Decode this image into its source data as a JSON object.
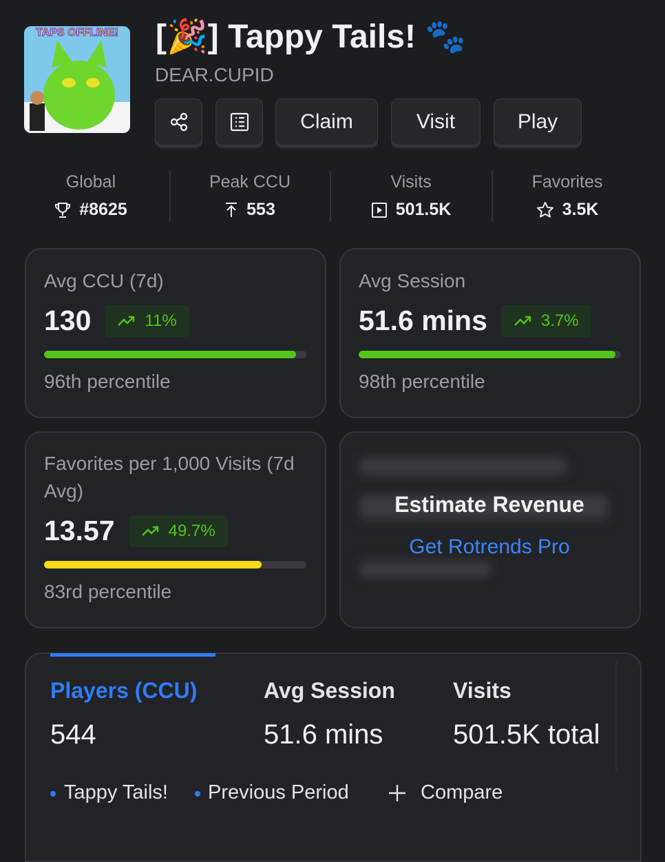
{
  "header": {
    "title": "[🎉] Tappy Tails! 🐾",
    "creator": "DEAR.CUPID",
    "thumbnail_text": "TAPS OFFLINE!"
  },
  "buttons": {
    "claim": "Claim",
    "visit": "Visit",
    "play": "Play"
  },
  "stats": [
    {
      "label": "Global",
      "value": "#8625"
    },
    {
      "label": "Peak CCU",
      "value": "553"
    },
    {
      "label": "Visits",
      "value": "501.5K"
    },
    {
      "label": "Favorites",
      "value": "3.5K"
    }
  ],
  "cards": [
    {
      "label": "Avg CCU (7d)",
      "value": "130",
      "change": "11%",
      "percentile": 96,
      "percentile_label": "96th percentile"
    },
    {
      "label": "Avg Session",
      "value": "51.6 mins",
      "change": "3.7%",
      "percentile": 98,
      "percentile_label": "98th percentile"
    },
    {
      "label": "Favorites per 1,000 Visits (7d Avg)",
      "value": "13.57",
      "change": "49.7%",
      "percentile": 83,
      "percentile_label": "83rd percentile"
    }
  ],
  "locked_card": {
    "title": "Estimate Revenue",
    "link": "Get Rotrends Pro"
  },
  "tabs": [
    {
      "label": "Players (CCU)",
      "value": "544"
    },
    {
      "label": "Avg Session",
      "value": "51.6 mins"
    },
    {
      "label": "Visits",
      "value": "501.5K total"
    }
  ],
  "legend": [
    "Tappy Tails!",
    "Previous Period"
  ],
  "compare": "Compare"
}
